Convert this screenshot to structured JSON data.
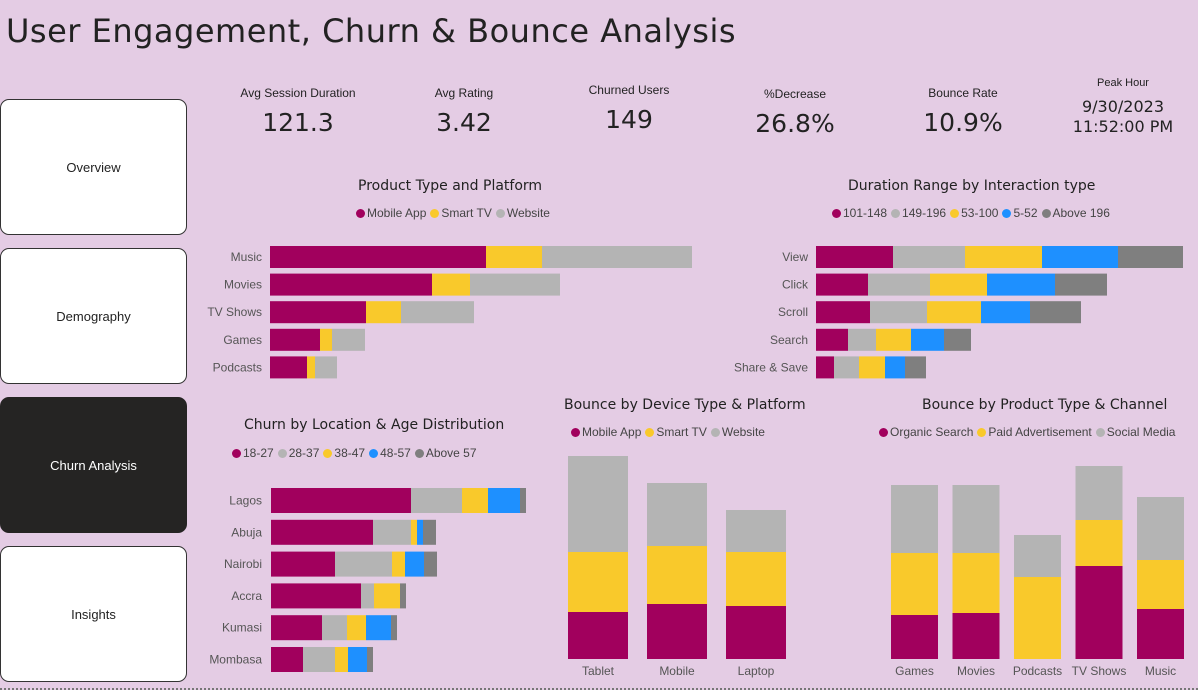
{
  "title": "User Engagement, Churn & Bounce Analysis",
  "colors": {
    "magenta": "#a1005d",
    "yellow": "#f9c92b",
    "lightgray": "#b4b4b4",
    "blue": "#1e90ff",
    "darkgray": "#7f7f7f"
  },
  "nav": [
    {
      "label": "Overview"
    },
    {
      "label": "Demography"
    },
    {
      "label": "Churn Analysis"
    },
    {
      "label": "Insights"
    }
  ],
  "kpis": {
    "avg_session": {
      "label": "Avg Session Duration",
      "value": "121.3"
    },
    "avg_rating": {
      "label": "Avg Rating",
      "value": "3.42"
    },
    "churned": {
      "label": "Churned Users",
      "value": "149"
    },
    "decrease": {
      "label": "%Decrease",
      "value": "26.8%"
    },
    "bounce": {
      "label": "Bounce Rate",
      "value": "10.9%"
    },
    "peak": {
      "label": "Peak Hour",
      "date": "9/30/2023",
      "time": "11:52:00 PM"
    }
  },
  "chart_data": [
    {
      "id": "product_platform",
      "type": "bar",
      "orientation": "horizontal",
      "stacked": true,
      "title": "Product Type and Platform",
      "legend": [
        "Mobile App",
        "Smart TV",
        "Website"
      ],
      "legend_colors": [
        "#a1005d",
        "#f9c92b",
        "#b4b4b4"
      ],
      "categories": [
        "Music",
        "Movies",
        "TV Shows",
        "Games",
        "Podcasts"
      ],
      "series": [
        {
          "name": "Mobile App",
          "values": [
            216,
            162,
            96,
            50,
            37
          ]
        },
        {
          "name": "Smart TV",
          "values": [
            56,
            38,
            35,
            12,
            8
          ]
        },
        {
          "name": "Website",
          "values": [
            150,
            90,
            73,
            33,
            22
          ]
        }
      ]
    },
    {
      "id": "duration_interaction",
      "type": "bar",
      "orientation": "horizontal",
      "stacked": true,
      "title": "Duration Range by Interaction type",
      "legend": [
        "101-148",
        "149-196",
        "53-100",
        "5-52",
        "Above 196"
      ],
      "legend_colors": [
        "#a1005d",
        "#b4b4b4",
        "#f9c92b",
        "#1e90ff",
        "#7f7f7f"
      ],
      "categories": [
        "View",
        "Click",
        "Scroll",
        "Search",
        "Share & Save"
      ],
      "series": [
        {
          "name": "101-148",
          "values": [
            77,
            52,
            54,
            32,
            18
          ]
        },
        {
          "name": "149-196",
          "values": [
            72,
            62,
            57,
            28,
            25
          ]
        },
        {
          "name": "53-100",
          "values": [
            77,
            57,
            54,
            35,
            26
          ]
        },
        {
          "name": "5-52",
          "values": [
            76,
            68,
            49,
            33,
            20
          ]
        },
        {
          "name": "Above 196",
          "values": [
            65,
            52,
            51,
            27,
            21
          ]
        }
      ]
    },
    {
      "id": "churn_location",
      "type": "bar",
      "orientation": "horizontal",
      "stacked": true,
      "title": "Churn by Location & Age Distribution",
      "legend": [
        "18-27",
        "28-37",
        "38-47",
        "48-57",
        "Above 57"
      ],
      "legend_colors": [
        "#a1005d",
        "#b4b4b4",
        "#f9c92b",
        "#1e90ff",
        "#7f7f7f"
      ],
      "categories": [
        "Lagos",
        "Abuja",
        "Nairobi",
        "Accra",
        "Kumasi",
        "Mombasa"
      ],
      "series": [
        {
          "name": "18-27",
          "values": [
            14,
            10.2,
            6.4,
            9,
            5.1,
            3.2
          ]
        },
        {
          "name": "28-37",
          "values": [
            5.1,
            3.8,
            5.7,
            1.3,
            2.5,
            3.2
          ]
        },
        {
          "name": "38-47",
          "values": [
            2.6,
            0.6,
            1.3,
            2.6,
            1.9,
            1.3
          ]
        },
        {
          "name": "48-57",
          "values": [
            3.2,
            0.6,
            1.9,
            0,
            2.5,
            1.9
          ]
        },
        {
          "name": "Above 57",
          "values": [
            0.6,
            1.3,
            1.3,
            0.6,
            0.6,
            0.6
          ]
        }
      ]
    },
    {
      "id": "bounce_device",
      "type": "bar",
      "orientation": "vertical",
      "stacked": true,
      "title": "Bounce by Device Type & Platform",
      "legend": [
        "Mobile App",
        "Smart TV",
        "Website"
      ],
      "legend_colors": [
        "#a1005d",
        "#f9c92b",
        "#b4b4b4"
      ],
      "categories": [
        "Tablet",
        "Mobile",
        "Laptop"
      ],
      "series": [
        {
          "name": "Mobile App",
          "values": [
            47,
            55,
            53
          ]
        },
        {
          "name": "Smart TV",
          "values": [
            60,
            58,
            54
          ]
        },
        {
          "name": "Website",
          "values": [
            96,
            63,
            42
          ]
        }
      ]
    },
    {
      "id": "bounce_product_channel",
      "type": "bar",
      "orientation": "vertical",
      "stacked": true,
      "title": "Bounce by Product Type & Channel",
      "legend": [
        "Organic Search",
        "Paid Advertisement",
        "Social Media"
      ],
      "legend_colors": [
        "#a1005d",
        "#f9c92b",
        "#b4b4b4"
      ],
      "categories": [
        "Games",
        "Movies",
        "Podcasts",
        "TV Shows",
        "Music"
      ],
      "series": [
        {
          "name": "Organic Search",
          "values": [
            44,
            46,
            0,
            93,
            50
          ]
        },
        {
          "name": "Paid Advertisement",
          "values": [
            62,
            60,
            82,
            46,
            49
          ]
        },
        {
          "name": "Social Media",
          "values": [
            68,
            68,
            42,
            54,
            63
          ]
        }
      ]
    }
  ]
}
